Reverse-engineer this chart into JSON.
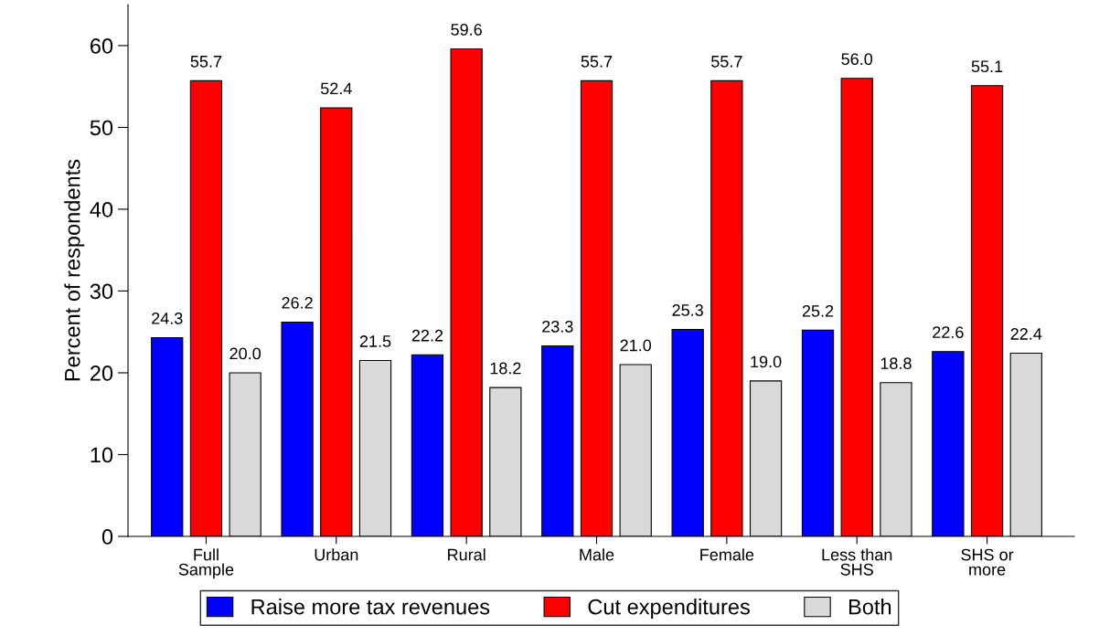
{
  "chart_data": {
    "type": "bar",
    "ylabel": "Percent of respondents",
    "categories": [
      "Full\nSample",
      "Urban",
      "Rural",
      "Male",
      "Female",
      "Less than\nSHS",
      "SHS or\nmore"
    ],
    "series": [
      {
        "name": "Raise more tax revenues",
        "color": "#0000ff",
        "values": [
          24.3,
          26.2,
          22.2,
          23.3,
          25.3,
          25.2,
          22.6
        ],
        "value_labels": [
          "24.3",
          "26.2",
          "22.2",
          "23.3",
          "25.3",
          "25.2",
          "22.6"
        ]
      },
      {
        "name": "Cut expenditures",
        "color": "#ff0000",
        "values": [
          55.7,
          52.4,
          59.6,
          55.7,
          55.7,
          56.0,
          55.1
        ],
        "value_labels": [
          "55.7",
          "52.4",
          "59.6",
          "55.7",
          "55.7",
          "56.0",
          "55.1"
        ]
      },
      {
        "name": "Both",
        "color": "#d9d9d9",
        "values": [
          20.0,
          21.5,
          18.2,
          21.0,
          19.0,
          18.8,
          22.4
        ],
        "value_labels": [
          "20.0",
          "21.5",
          "18.2",
          "21.0",
          "19.0",
          "18.8",
          "22.4"
        ]
      }
    ],
    "ylim": [
      0,
      65
    ],
    "yticks": [
      0,
      10,
      20,
      30,
      40,
      50,
      60
    ],
    "grid": false,
    "legend": "bottom"
  }
}
